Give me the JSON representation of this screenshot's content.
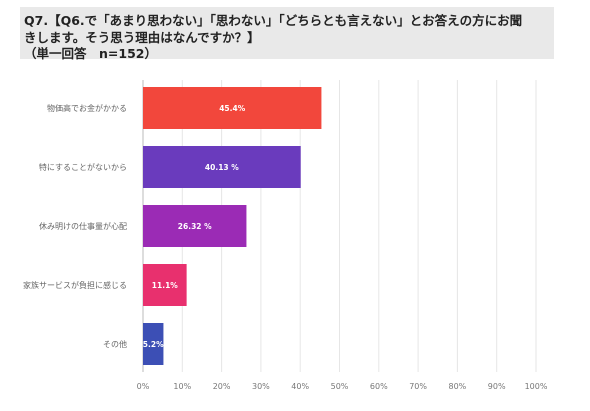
{
  "question": {
    "line1": "Q7.【Q6.で「あまり思わない」「思わない」「どちらとも言えない」とお答えの方にお聞",
    "line2": "きします。そう思う理由はなんですか？】",
    "line3": "（単一回答　n=152）"
  },
  "chart_data": {
    "type": "bar",
    "orientation": "horizontal",
    "categories": [
      "物価高でお金がかかる",
      "特にすることがないから",
      "休み明けの仕事量が心配",
      "家族サービスが負担に感じる",
      "その他"
    ],
    "values": [
      45.4,
      40.13,
      26.32,
      11.1,
      5.2
    ],
    "value_labels": [
      "45.4%",
      "40.13 %",
      "26.32 %",
      "11.1%",
      "5.2%"
    ],
    "colors": [
      "#f2473c",
      "#6a3bbd",
      "#9b2bb5",
      "#e8306e",
      "#3c4fb5"
    ],
    "xlim": [
      0,
      100
    ],
    "xticks": [
      "0%",
      "10%",
      "20%",
      "30%",
      "40%",
      "50%",
      "60%",
      "70%",
      "80%",
      "90%",
      "100%"
    ],
    "grid": true
  }
}
